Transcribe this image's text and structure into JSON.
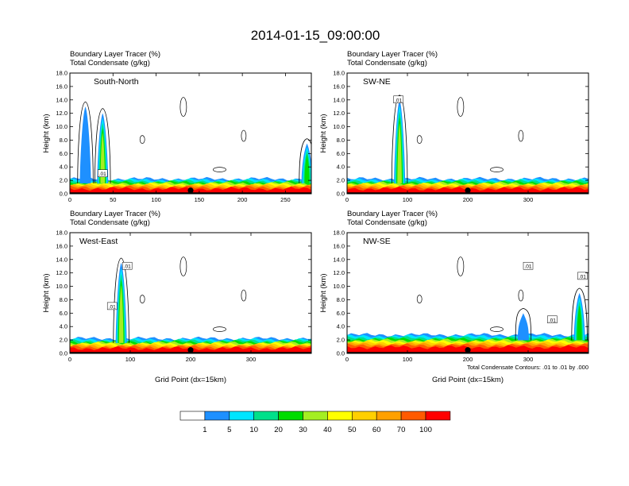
{
  "title": "2014-01-15_09:00:00",
  "colors": {
    "palette": [
      "#ffffff",
      "#1e90ff",
      "#00e5ff",
      "#00e08a",
      "#00dd00",
      "#a4ee22",
      "#ffff00",
      "#ffcf00",
      "#ffa000",
      "#ff5a00",
      "#ff0000"
    ],
    "ground": "#000000"
  },
  "chart_data": [
    {
      "type": "cross-section",
      "panel_id": "south-north",
      "label": "South-North",
      "header_line1": "Boundary Layer Tracer   (%)",
      "header_line2": "Total Condensate   (g/kg)",
      "xlim": [
        0,
        280
      ],
      "xticks": [
        "0",
        "50",
        "100",
        "150",
        "200",
        "250"
      ],
      "ylim": [
        0,
        18
      ],
      "yticks": [
        "0.0",
        "2.0",
        "4.0",
        "6.0",
        "8.0",
        "10.0",
        "12.0",
        "14.0",
        "16.0",
        "18.0"
      ],
      "ylabel": "Height (km)",
      "xlabel": "",
      "marker_x": 140,
      "boundary_layer_top_km": 1.2,
      "plumes": [
        {
          "x_center": 38,
          "top_km": 12.0,
          "color_level": 30
        },
        {
          "x_center": 18,
          "top_km": 13.0,
          "color_level": 1
        },
        {
          "x_center": 275,
          "top_km": 7.5,
          "color_level": 20
        }
      ],
      "contour_labels": [
        {
          "text": ".01",
          "x": 38,
          "y_km": 3.0
        }
      ]
    },
    {
      "type": "cross-section",
      "panel_id": "sw-ne",
      "label": "SW-NE",
      "header_line1": "Boundary Layer Tracer   (%)",
      "header_line2": "Total Condensate   (g/kg)",
      "xlim": [
        0,
        400
      ],
      "xticks": [
        "0",
        "100",
        "200",
        "300"
      ],
      "ylim": [
        0,
        18
      ],
      "yticks": [
        "0.0",
        "2.0",
        "4.0",
        "6.0",
        "8.0",
        "10.0",
        "12.0",
        "14.0",
        "16.0",
        "18.0"
      ],
      "ylabel": "Height (km)",
      "xlabel": "",
      "marker_x": 200,
      "boundary_layer_top_km": 1.2,
      "plumes": [
        {
          "x_center": 87,
          "top_km": 14.0,
          "color_level": 30
        }
      ],
      "contour_labels": [
        {
          "text": ".01",
          "x": 85,
          "y_km": 14.0
        }
      ]
    },
    {
      "type": "cross-section",
      "panel_id": "west-east",
      "label": "West-East",
      "header_line1": "Boundary Layer Tracer   (%)",
      "header_line2": "Total Condensate   (g/kg)",
      "xlim": [
        0,
        400
      ],
      "xticks": [
        "0",
        "100",
        "200",
        "300"
      ],
      "ylim": [
        0,
        18
      ],
      "yticks": [
        "0.0",
        "2.0",
        "4.0",
        "6.0",
        "8.0",
        "10.0",
        "12.0",
        "14.0",
        "16.0",
        "18.0"
      ],
      "ylabel": "Height (km)",
      "xlabel": "Grid Point (dx=15km)",
      "marker_x": 200,
      "boundary_layer_top_km": 1.2,
      "plumes": [
        {
          "x_center": 85,
          "top_km": 13.5,
          "color_level": 30
        }
      ],
      "contour_labels": [
        {
          "text": ".01",
          "x": 95,
          "y_km": 13.0
        },
        {
          "text": ".01",
          "x": 70,
          "y_km": 7.0
        }
      ]
    },
    {
      "type": "cross-section",
      "panel_id": "nw-se",
      "label": "NW-SE",
      "header_line1": "Boundary Layer Tracer   (%)",
      "header_line2": "Total Condensate   (g/kg)",
      "xlim": [
        0,
        400
      ],
      "xticks": [
        "0",
        "100",
        "200",
        "300"
      ],
      "ylim": [
        0,
        18
      ],
      "yticks": [
        "0.0",
        "2.0",
        "4.0",
        "6.0",
        "8.0",
        "10.0",
        "12.0",
        "14.0",
        "16.0",
        "18.0"
      ],
      "ylabel": "Height (km)",
      "xlabel": "Grid Point (dx=15km)",
      "marker_x": 200,
      "boundary_layer_top_km": 1.5,
      "plumes": [
        {
          "x_center": 292,
          "top_km": 6.0,
          "color_level": 1
        },
        {
          "x_center": 385,
          "top_km": 9.0,
          "color_level": 20
        }
      ],
      "contour_labels": [
        {
          "text": ".01",
          "x": 300,
          "y_km": 13.0
        },
        {
          "text": ".01",
          "x": 390,
          "y_km": 11.5
        },
        {
          "text": ".01",
          "x": 340,
          "y_km": 5.0
        }
      ],
      "footnote": "Total Condensate Contours: .01 to .01 by .000"
    }
  ],
  "colorbar": {
    "labels": [
      "1",
      "5",
      "10",
      "20",
      "30",
      "40",
      "50",
      "60",
      "70",
      "100"
    ]
  }
}
